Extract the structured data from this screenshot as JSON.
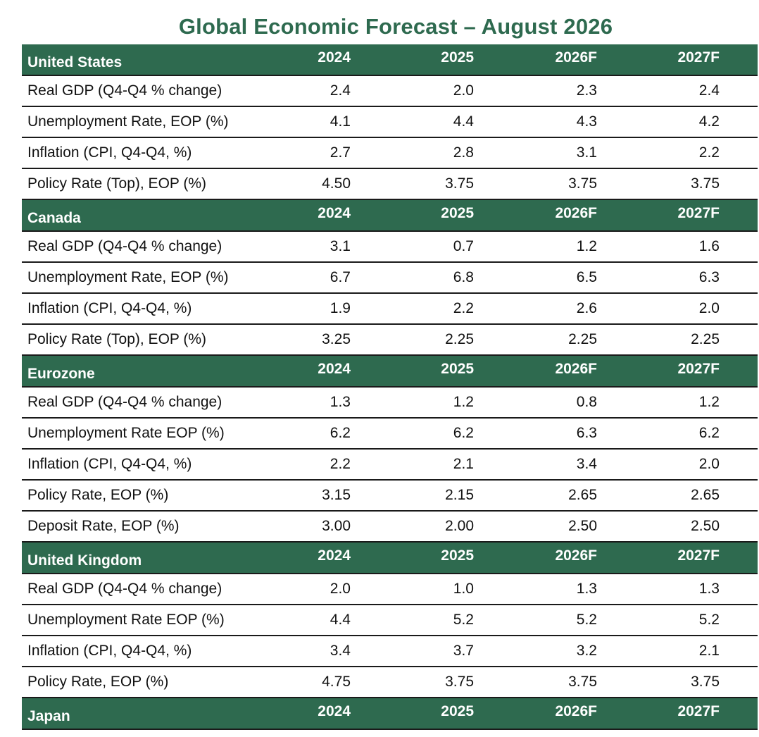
{
  "title": "Global Economic Forecast – August 2026",
  "sections": [
    {
      "region": "United States",
      "years": [
        "2024",
        "2025",
        "2026F",
        "2027F"
      ],
      "rows": [
        {
          "label": "Real GDP (Q4-Q4 % change)",
          "values": [
            "2.4",
            "2.0",
            "2.3",
            "2.4"
          ]
        },
        {
          "label": "Unemployment Rate, EOP (%)",
          "values": [
            "4.1",
            "4.4",
            "4.3",
            "4.2"
          ]
        },
        {
          "label": "Inflation (CPI, Q4-Q4, %)",
          "values": [
            "2.7",
            "2.8",
            "3.1",
            "2.2"
          ]
        },
        {
          "label": "Policy Rate (Top), EOP (%)",
          "values": [
            "4.50",
            "3.75",
            "3.75",
            "3.75"
          ]
        }
      ]
    },
    {
      "region": "Canada",
      "years": [
        "2024",
        "2025",
        "2026F",
        "2027F"
      ],
      "rows": [
        {
          "label": "Real GDP (Q4-Q4 % change)",
          "values": [
            "3.1",
            "0.7",
            "1.2",
            "1.6"
          ]
        },
        {
          "label": "Unemployment Rate, EOP (%)",
          "values": [
            "6.7",
            "6.8",
            "6.5",
            "6.3"
          ]
        },
        {
          "label": "Inflation (CPI, Q4-Q4, %)",
          "values": [
            "1.9",
            "2.2",
            "2.6",
            "2.0"
          ]
        },
        {
          "label": "Policy Rate (Top), EOP (%)",
          "values": [
            "3.25",
            "2.25",
            "2.25",
            "2.25"
          ]
        }
      ]
    },
    {
      "region": "Eurozone",
      "years": [
        "2024",
        "2025",
        "2026F",
        "2027F"
      ],
      "rows": [
        {
          "label": "Real GDP (Q4-Q4 % change)",
          "values": [
            "1.3",
            "1.2",
            "0.8",
            "1.2"
          ]
        },
        {
          "label": "Unemployment Rate EOP (%)",
          "values": [
            "6.2",
            "6.2",
            "6.3",
            "6.2"
          ]
        },
        {
          "label": "Inflation (CPI, Q4-Q4, %)",
          "values": [
            "2.2",
            "2.1",
            "3.4",
            "2.0"
          ]
        },
        {
          "label": "Policy Rate, EOP (%)",
          "values": [
            "3.15",
            "2.15",
            "2.65",
            "2.65"
          ]
        },
        {
          "label": "Deposit Rate, EOP (%)",
          "values": [
            "3.00",
            "2.00",
            "2.50",
            "2.50"
          ]
        }
      ]
    },
    {
      "region": "United Kingdom",
      "years": [
        "2024",
        "2025",
        "2026F",
        "2027F"
      ],
      "rows": [
        {
          "label": "Real GDP (Q4-Q4 % change)",
          "values": [
            "2.0",
            "1.0",
            "1.3",
            "1.3"
          ]
        },
        {
          "label": "Unemployment Rate EOP (%)",
          "values": [
            "4.4",
            "5.2",
            "5.2",
            "5.2"
          ]
        },
        {
          "label": "Inflation (CPI, Q4-Q4, %)",
          "values": [
            "3.4",
            "3.7",
            "3.2",
            "2.1"
          ]
        },
        {
          "label": "Policy Rate, EOP (%)",
          "values": [
            "4.75",
            "3.75",
            "3.75",
            "3.75"
          ]
        }
      ]
    },
    {
      "region": "Japan",
      "years": [
        "2024",
        "2025",
        "2026F",
        "2027F"
      ],
      "rows": []
    }
  ],
  "colors": {
    "header_bg": "#2e6a4f",
    "title_text": "#2e6a4f",
    "header_text": "#ffffff"
  }
}
